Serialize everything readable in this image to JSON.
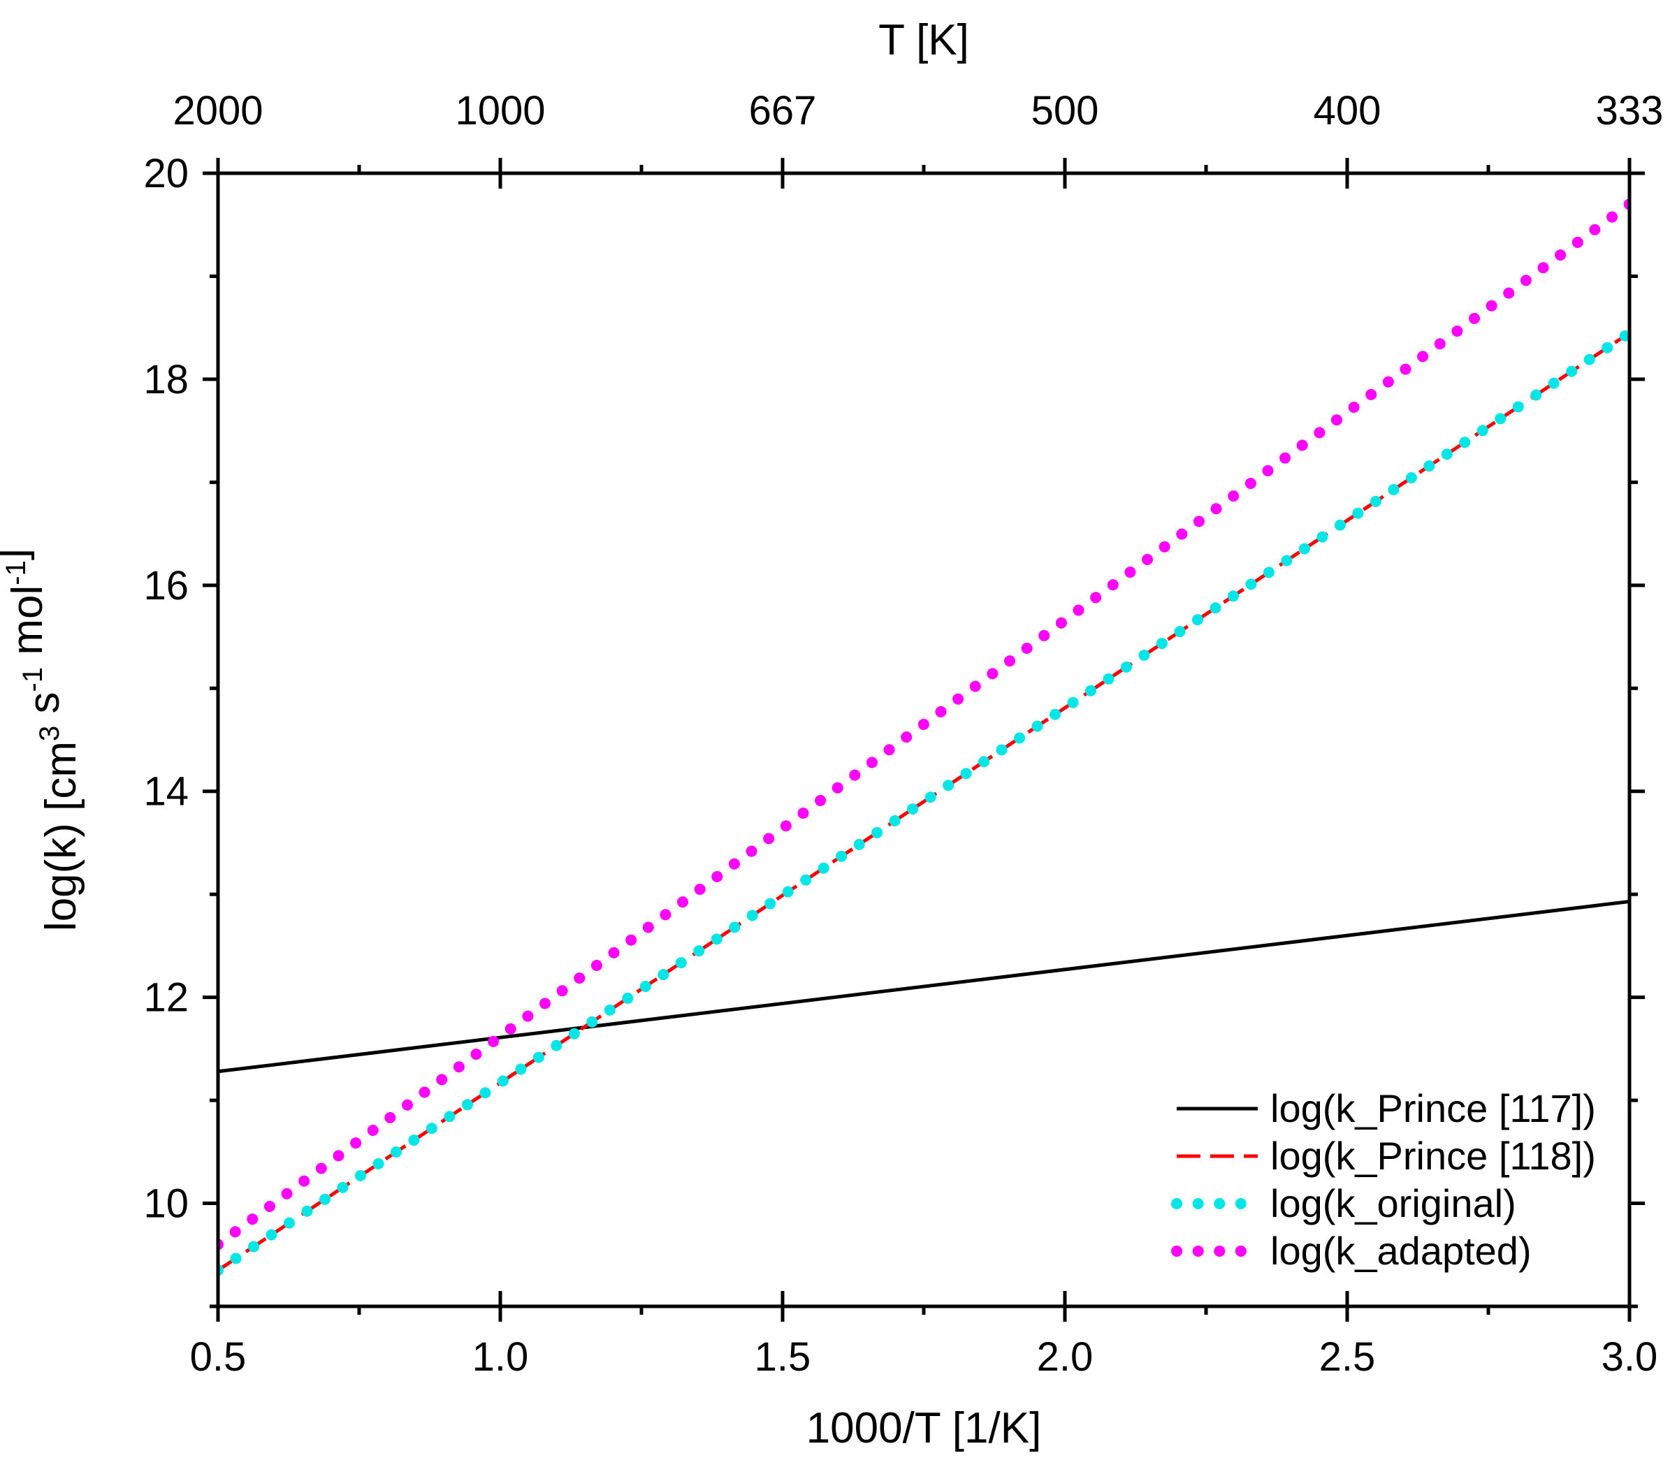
{
  "chart_data": {
    "type": "line",
    "title": "",
    "xlabel": "1000/T [1/K]",
    "x2label": "T [K]",
    "ylabel": {
      "parts": [
        {
          "text": "log(k) [cm",
          "sup": false
        },
        {
          "text": "3",
          "sup": true
        },
        {
          "text": " s",
          "sup": false
        },
        {
          "text": "-1",
          "sup": true
        },
        {
          "text": " mol",
          "sup": false
        },
        {
          "text": "-1",
          "sup": true
        },
        {
          "text": "]",
          "sup": false
        }
      ]
    },
    "xlim": [
      0.5,
      3.0
    ],
    "ylim": [
      9,
      20
    ],
    "x_ticks": [
      0.5,
      1.0,
      1.5,
      2.0,
      2.5,
      3.0
    ],
    "x_tick_labels": [
      "0.5",
      "1.0",
      "1.5",
      "2.0",
      "2.5",
      "3.0"
    ],
    "y_ticks": [
      10,
      12,
      14,
      16,
      18,
      20
    ],
    "y_tick_labels": [
      "10",
      "12",
      "14",
      "16",
      "18",
      "20"
    ],
    "x2_ticks": [
      0.5,
      1.0,
      1.5,
      2.0,
      2.5,
      3.0
    ],
    "x2_tick_labels": [
      "2000",
      "1000",
      "667",
      "500",
      "400",
      "333"
    ],
    "legend_position": "bottom-right",
    "series": [
      {
        "name": "log(k_Prince [117])",
        "style": "solid",
        "color": "#000000",
        "x": [
          0.5,
          3.0
        ],
        "y": [
          11.28,
          12.93
        ]
      },
      {
        "name": "log(k_Prince [118])",
        "style": "dashed",
        "color": "#ff0000",
        "x": [
          0.5,
          3.0
        ],
        "y": [
          9.35,
          18.45
        ]
      },
      {
        "name": "log(k_original)",
        "style": "dotted",
        "color": "#00e5e5",
        "x": [
          0.5,
          3.0
        ],
        "y": [
          9.35,
          18.45
        ]
      },
      {
        "name": "log(k_adapted)",
        "style": "dotted",
        "color": "#ff00ff",
        "x": [
          0.5,
          3.0
        ],
        "y": [
          9.6,
          19.7
        ]
      }
    ]
  }
}
